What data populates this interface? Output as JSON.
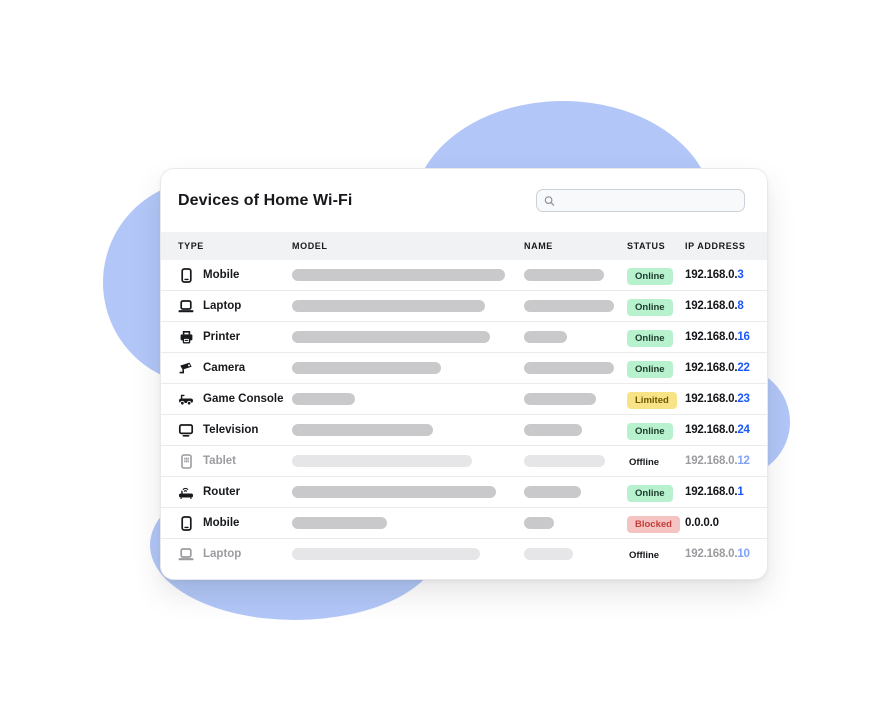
{
  "colors": {
    "blob": "#b2c7f8",
    "online_bg": "#b7f1ce",
    "online_text": "#1c3a2a",
    "limited_bg": "#f9e387",
    "limited_text": "#6d5600",
    "blocked_bg": "#f5c3c1",
    "blocked_text": "#c23e3a",
    "ip_blue": "#1b58fa",
    "ip_blue_muted": "#7fa3f7"
  },
  "card": {
    "title": "Devices of Home Wi-Fi",
    "search": {
      "value": "",
      "placeholder": ""
    }
  },
  "table": {
    "columns": [
      "TYPE",
      "MODEL",
      "NAME",
      "STATUS",
      "IP ADDRESS"
    ],
    "rows": [
      {
        "type": "Mobile",
        "icon": "smartphone-icon",
        "model_bar_w": 213,
        "name_bar_w": 80,
        "status": "Online",
        "status_kind": "online",
        "ip_prefix": "192.168.0.",
        "ip_last": "3",
        "muted": false
      },
      {
        "type": "Laptop",
        "icon": "laptop-icon",
        "model_bar_w": 193,
        "name_bar_w": 90,
        "status": "Online",
        "status_kind": "online",
        "ip_prefix": "192.168.0.",
        "ip_last": "8",
        "muted": false
      },
      {
        "type": "Printer",
        "icon": "printer-icon",
        "model_bar_w": 198,
        "name_bar_w": 43,
        "status": "Online",
        "status_kind": "online",
        "ip_prefix": "192.168.0.",
        "ip_last": "16",
        "muted": false
      },
      {
        "type": "Camera",
        "icon": "cctv-camera-icon",
        "model_bar_w": 149,
        "name_bar_w": 90,
        "status": "Online",
        "status_kind": "online",
        "ip_prefix": "192.168.0.",
        "ip_last": "22",
        "muted": false
      },
      {
        "type": "Game Console",
        "icon": "game-console-icon",
        "model_bar_w": 63,
        "name_bar_w": 72,
        "status": "Limited",
        "status_kind": "limited",
        "ip_prefix": "192.168.0.",
        "ip_last": "23",
        "muted": false
      },
      {
        "type": "Television",
        "icon": "television-icon",
        "model_bar_w": 141,
        "name_bar_w": 58,
        "status": "Online",
        "status_kind": "online",
        "ip_prefix": "192.168.0.",
        "ip_last": "24",
        "muted": false
      },
      {
        "type": "Tablet",
        "icon": "tablet-icon",
        "model_bar_w": 180,
        "name_bar_w": 81,
        "status": "Offline",
        "status_kind": "offline",
        "ip_prefix": "192.168.0.",
        "ip_last": "12",
        "muted": true
      },
      {
        "type": "Router",
        "icon": "router-icon",
        "model_bar_w": 204,
        "name_bar_w": 57,
        "status": "Online",
        "status_kind": "online",
        "ip_prefix": "192.168.0.",
        "ip_last": "1",
        "muted": false
      },
      {
        "type": "Mobile",
        "icon": "smartphone-icon",
        "model_bar_w": 95,
        "name_bar_w": 30,
        "status": "Blocked",
        "status_kind": "blocked",
        "ip_prefix": "0.0.0.0",
        "ip_last": "",
        "muted": false
      },
      {
        "type": "Laptop",
        "icon": "laptop-icon",
        "model_bar_w": 188,
        "name_bar_w": 49,
        "status": "Offline",
        "status_kind": "offline",
        "ip_prefix": "192.168.0.",
        "ip_last": "10",
        "muted": true
      }
    ]
  }
}
